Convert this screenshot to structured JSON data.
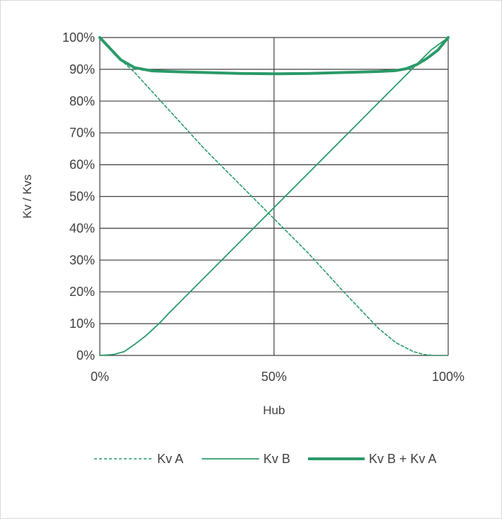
{
  "chart_data": {
    "type": "line",
    "title": "",
    "xlabel": "Hub",
    "ylabel": "Kv / Kvs",
    "xlim": [
      0,
      100
    ],
    "ylim": [
      0,
      100
    ],
    "x_ticks": [
      "0%",
      "50%",
      "100%"
    ],
    "x_tick_values": [
      0,
      50,
      100
    ],
    "y_ticks": [
      "0%",
      "10%",
      "20%",
      "30%",
      "40%",
      "50%",
      "60%",
      "70%",
      "80%",
      "90%",
      "100%"
    ],
    "y_tick_values": [
      0,
      10,
      20,
      30,
      40,
      50,
      60,
      70,
      80,
      90,
      100
    ],
    "grid": true,
    "legend_position": "bottom",
    "series": [
      {
        "name": "Kv A",
        "style": "dashed",
        "x": [
          0,
          5,
          10,
          15,
          20,
          30,
          40,
          50,
          60,
          70,
          80,
          85,
          90,
          93,
          96,
          100
        ],
        "y": [
          100,
          94,
          89,
          83,
          77,
          65,
          54,
          43,
          32,
          20,
          8.5,
          4,
          1.2,
          0.3,
          0,
          0
        ]
      },
      {
        "name": "Kv B",
        "style": "solid",
        "x": [
          0,
          4,
          7,
          10,
          13,
          17,
          20,
          30,
          40,
          50,
          60,
          70,
          80,
          90,
          95,
          100
        ],
        "y": [
          0,
          0.3,
          1.2,
          3.5,
          6,
          10,
          13.5,
          24.5,
          35.5,
          46.5,
          57.5,
          68.5,
          79.5,
          90.5,
          96,
          100
        ]
      },
      {
        "name": "Kv B + Kv A",
        "style": "thick",
        "x": [
          0,
          3,
          6,
          10,
          15,
          20,
          30,
          40,
          50,
          60,
          70,
          80,
          85,
          88,
          91,
          94,
          97,
          100
        ],
        "y": [
          100,
          96.5,
          93,
          90.5,
          89.5,
          89.3,
          89,
          88.7,
          88.6,
          88.7,
          89,
          89.3,
          89.6,
          90.2,
          91.5,
          93.5,
          96,
          100
        ]
      }
    ],
    "colors": {
      "line": "#2a9a68",
      "grid": "#404040",
      "text": "#404040"
    }
  }
}
